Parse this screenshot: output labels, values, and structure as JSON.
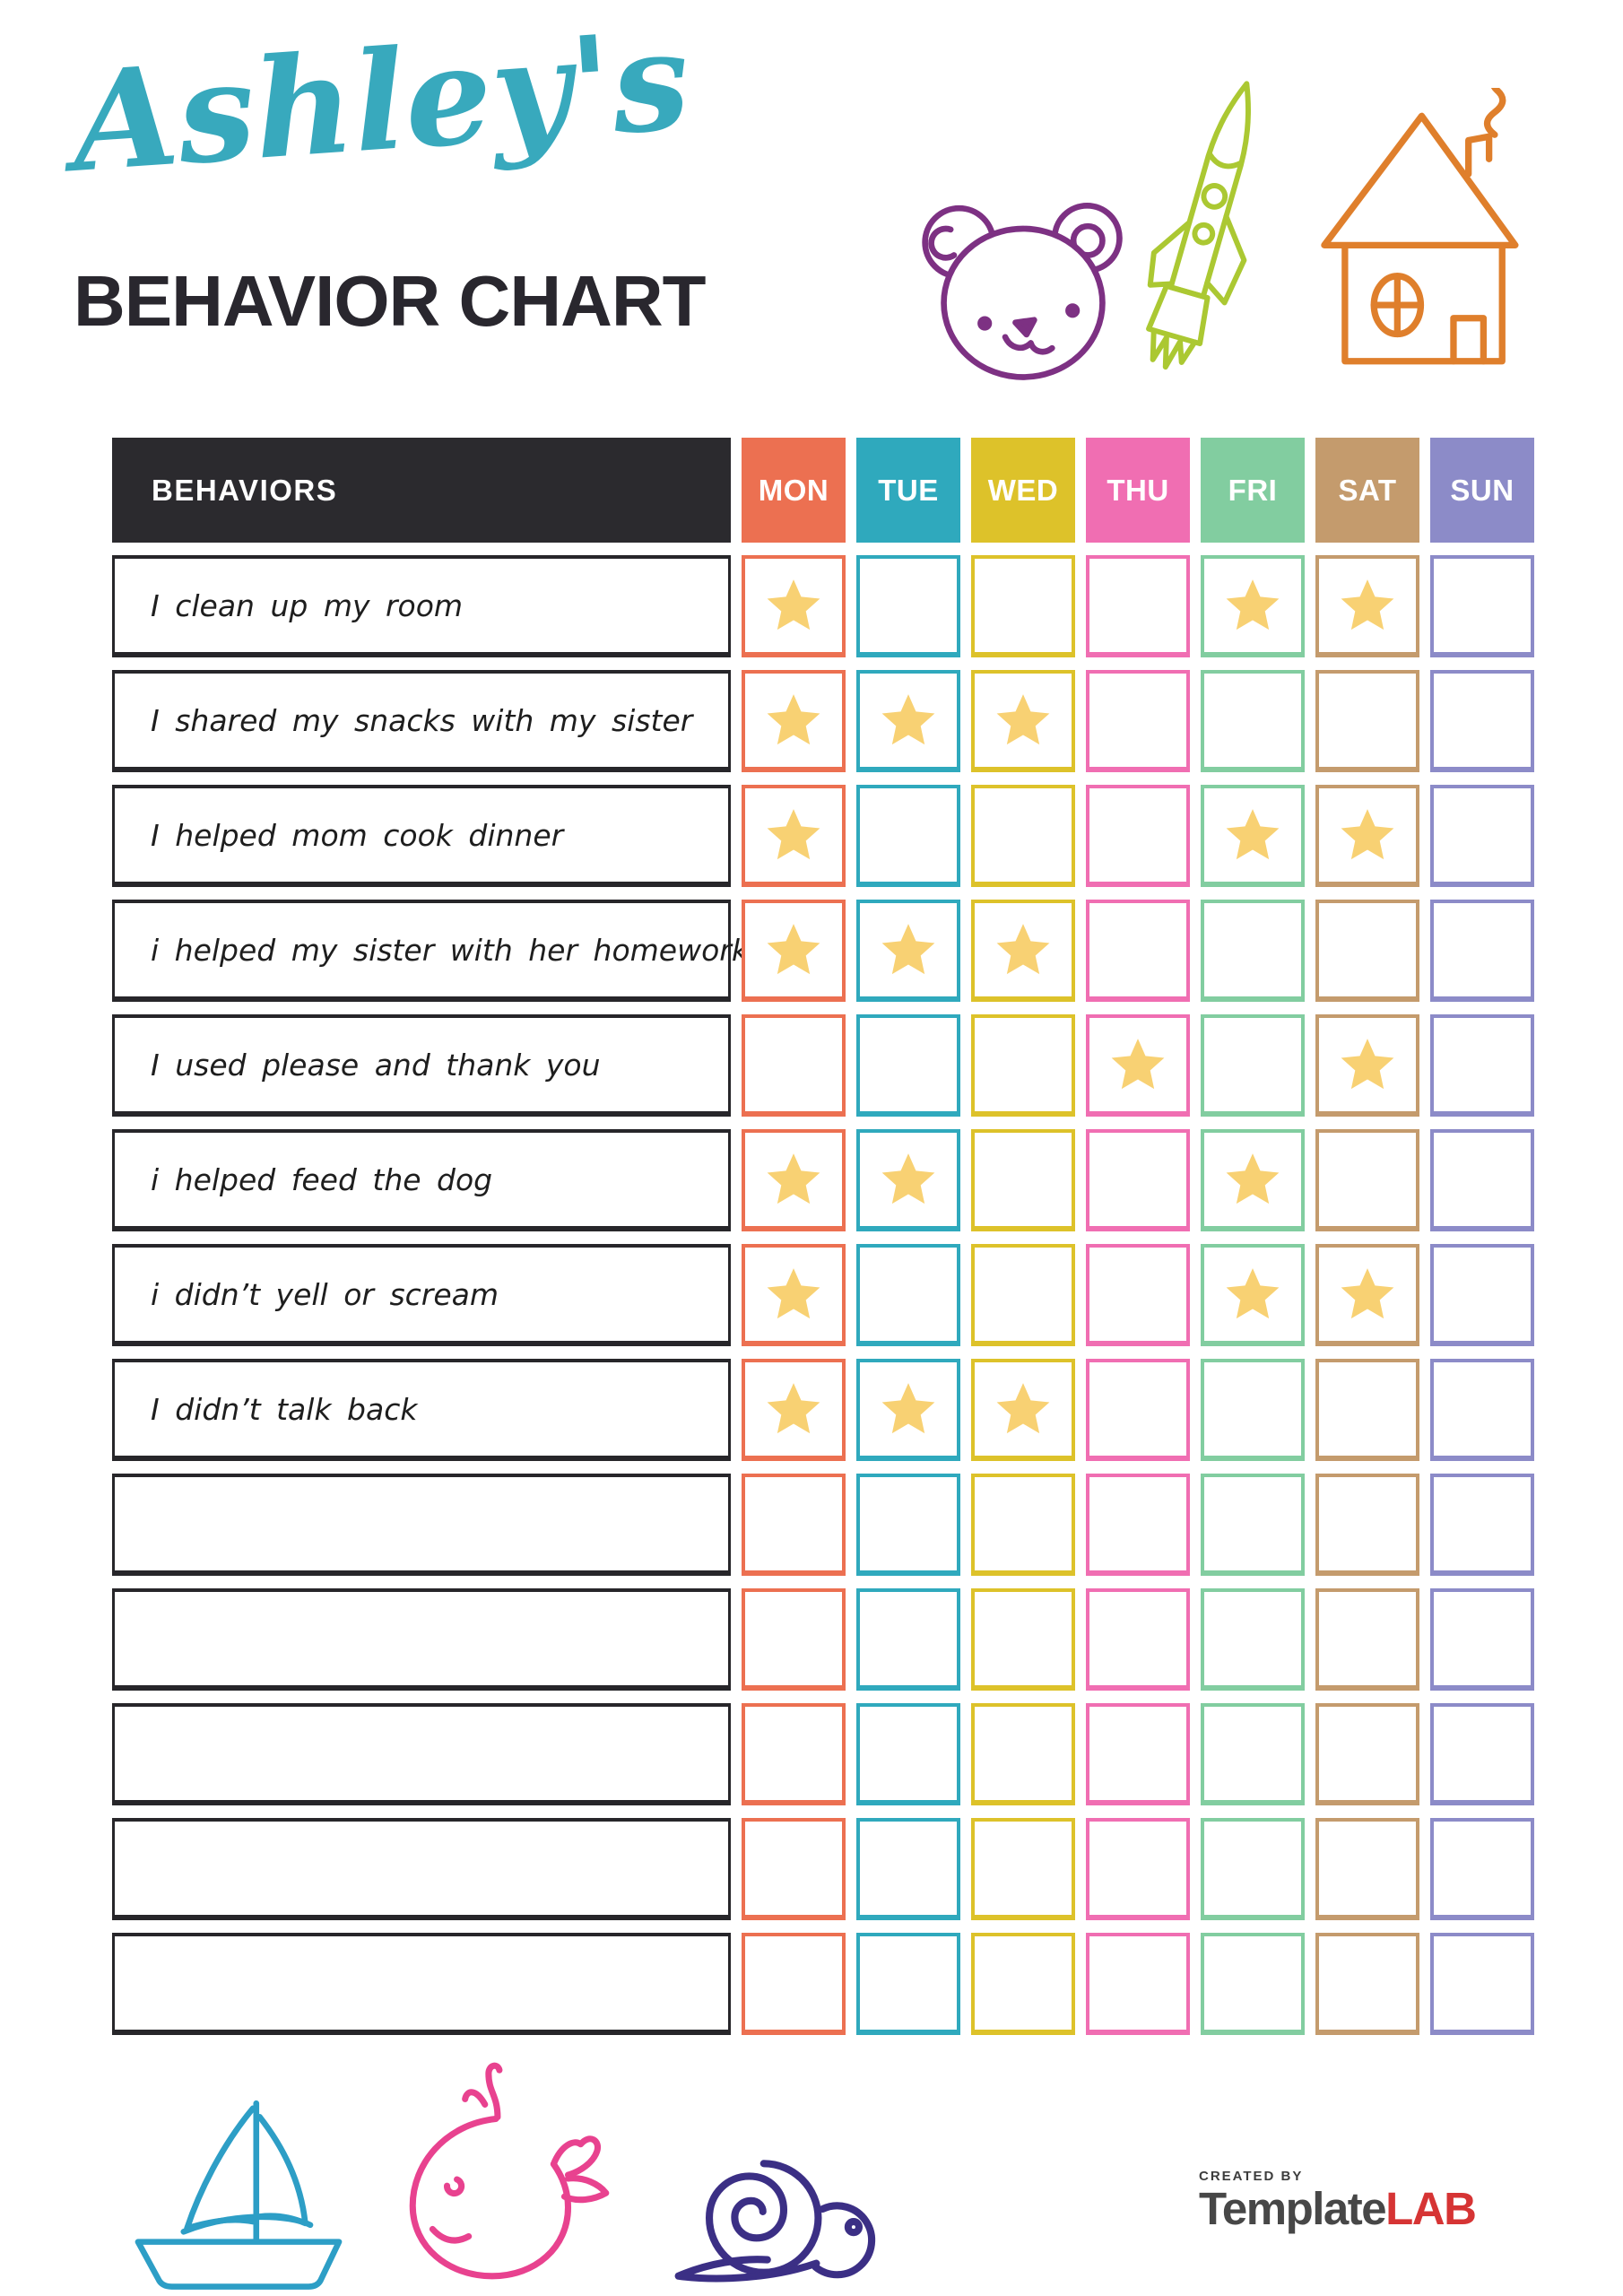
{
  "title": {
    "script_name": "Ashley's",
    "heading": "BEHAVIOR CHART"
  },
  "colors": {
    "script_title": "#38A9BD",
    "heading": "#29272E",
    "table_header_bg": "#2B2A2E",
    "row_border": "#27262A",
    "star": "#F8D173",
    "bear": "#7D3183",
    "rocket": "#ABC832",
    "house": "#DF7F2C",
    "sailboat": "#2D9EC6",
    "whale": "#E8428F",
    "snail": "#3B2F85",
    "logo_gray": "#474747",
    "logo_red": "#D63434"
  },
  "table": {
    "behaviors_header": "BEHAVIORS",
    "days": [
      {
        "label": "MON",
        "color": "#EC7051"
      },
      {
        "label": "TUE",
        "color": "#2FA9BD"
      },
      {
        "label": "WED",
        "color": "#DDC22A"
      },
      {
        "label": "THU",
        "color": "#F06EB2"
      },
      {
        "label": "FRI",
        "color": "#82CDA0"
      },
      {
        "label": "SAT",
        "color": "#C49B6D"
      },
      {
        "label": "SUN",
        "color": "#8C8BC8"
      }
    ],
    "rows": [
      {
        "label": "I clean up my room",
        "stars": [
          1,
          0,
          0,
          0,
          1,
          1,
          0
        ]
      },
      {
        "label": "I shared my snacks with my sister",
        "stars": [
          1,
          1,
          1,
          0,
          0,
          0,
          0
        ]
      },
      {
        "label": "I helped mom cook dinner",
        "stars": [
          1,
          0,
          0,
          0,
          1,
          1,
          0
        ]
      },
      {
        "label": "i helped my sister with her homework",
        "stars": [
          1,
          1,
          1,
          0,
          0,
          0,
          0
        ]
      },
      {
        "label": "I used please and thank you",
        "stars": [
          0,
          0,
          0,
          1,
          0,
          1,
          0
        ]
      },
      {
        "label": "i helped feed the dog",
        "stars": [
          1,
          1,
          0,
          0,
          1,
          0,
          0
        ]
      },
      {
        "label": "i didn’t yell or scream",
        "stars": [
          1,
          0,
          0,
          0,
          1,
          1,
          0
        ]
      },
      {
        "label": "I didn’t talk back",
        "stars": [
          1,
          1,
          1,
          0,
          0,
          0,
          0
        ]
      },
      {
        "label": "",
        "stars": [
          0,
          0,
          0,
          0,
          0,
          0,
          0
        ]
      },
      {
        "label": "",
        "stars": [
          0,
          0,
          0,
          0,
          0,
          0,
          0
        ]
      },
      {
        "label": "",
        "stars": [
          0,
          0,
          0,
          0,
          0,
          0,
          0
        ]
      },
      {
        "label": "",
        "stars": [
          0,
          0,
          0,
          0,
          0,
          0,
          0
        ]
      },
      {
        "label": "",
        "stars": [
          0,
          0,
          0,
          0,
          0,
          0,
          0
        ]
      }
    ]
  },
  "footer": {
    "created_by": "CREATED BY",
    "brand_primary": "Template",
    "brand_accent": "LAB"
  }
}
